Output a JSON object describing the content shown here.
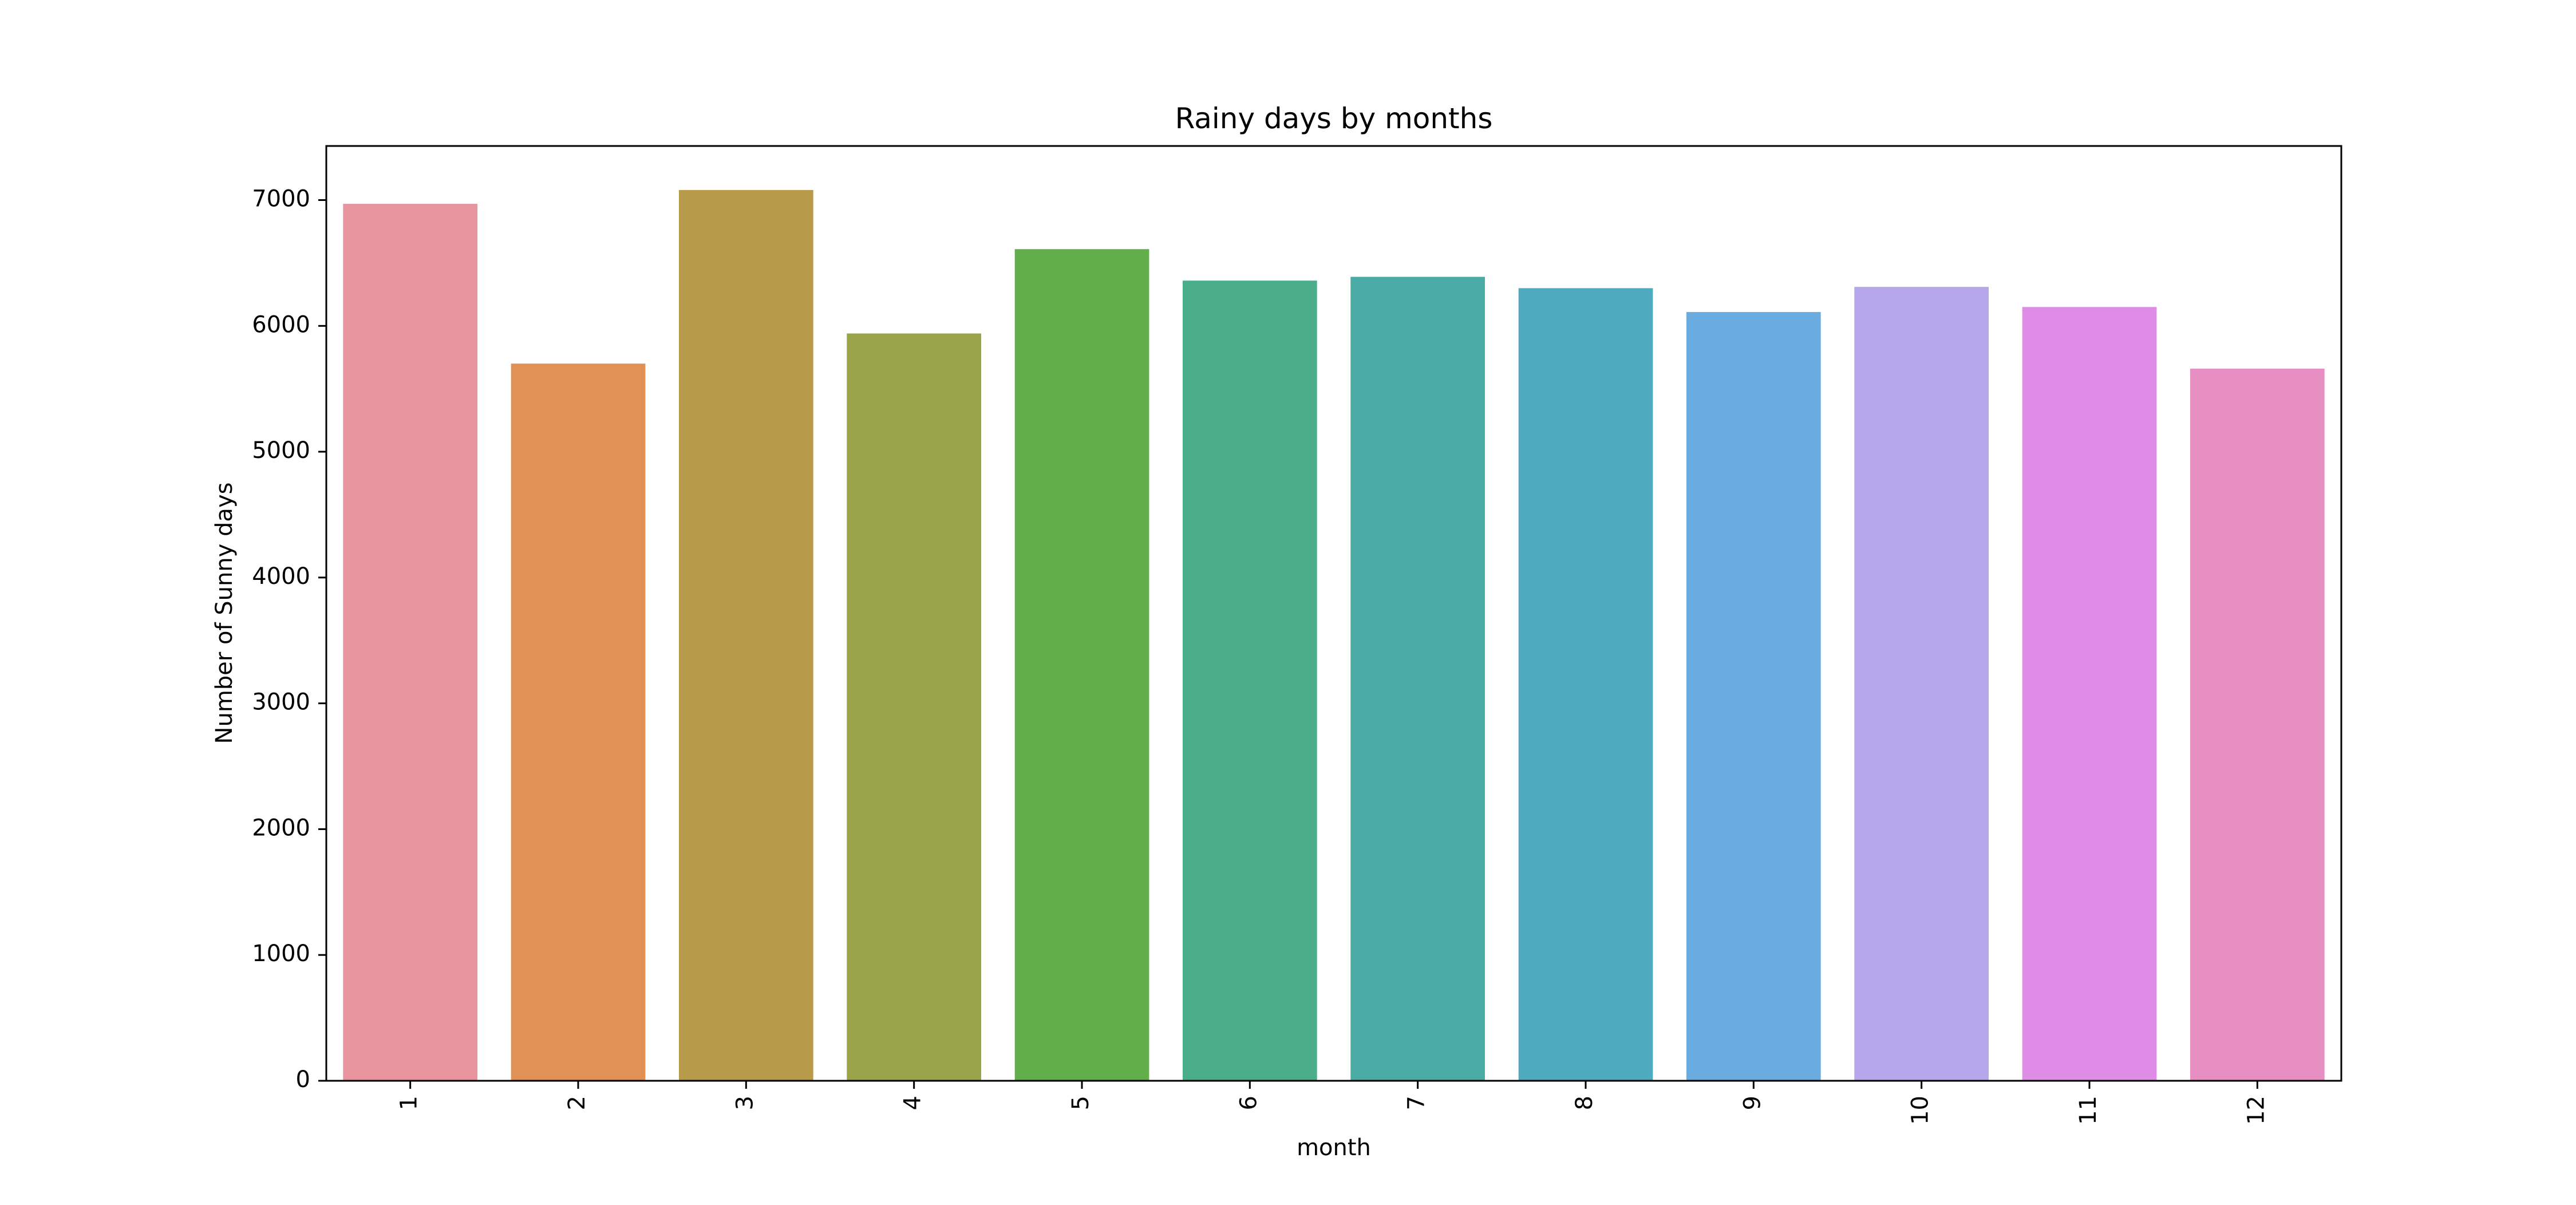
{
  "chart_data": {
    "type": "bar",
    "title": "Rainy days by months",
    "xlabel": "month",
    "ylabel": "Number of Sunny days",
    "categories": [
      "1",
      "2",
      "3",
      "4",
      "5",
      "6",
      "7",
      "8",
      "9",
      "10",
      "11",
      "12"
    ],
    "values": [
      6970,
      5700,
      7080,
      5940,
      6610,
      6360,
      6390,
      6300,
      6110,
      6310,
      6150,
      5660
    ],
    "ylim": [
      0,
      7430
    ],
    "yticks": [
      0,
      1000,
      2000,
      3000,
      4000,
      5000,
      6000,
      7000
    ],
    "grid": false,
    "legend": "none",
    "colors": [
      "#e8949f",
      "#e19153",
      "#b79b4a",
      "#99a448",
      "#62ae4b",
      "#4bae8a",
      "#4aaba5",
      "#4eaabe",
      "#6aacdf",
      "#b6a6eb",
      "#df8ce6",
      "#e78ec2"
    ]
  }
}
